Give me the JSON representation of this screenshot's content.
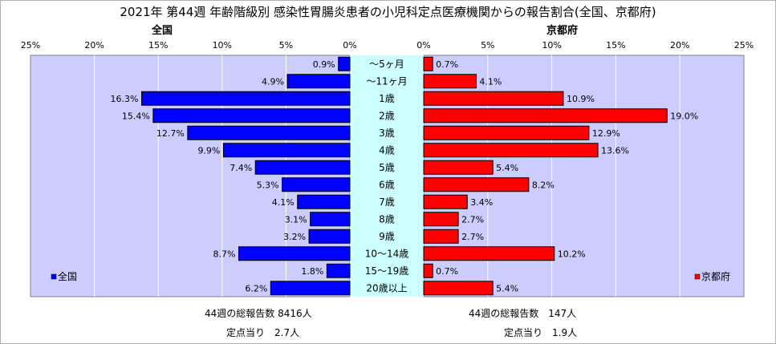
{
  "title": "2021年 第44週 年齢階級別 感染性胃腸炎患者の小児科定点医療機関からの報告割合(全国、京都府)",
  "colors": {
    "national": "#0000ff",
    "kyoto": "#ff0000",
    "plot_bg": "#ccccff",
    "center_bg": "#ccffff",
    "grid": "#ffffff"
  },
  "chart_data": {
    "type": "bar",
    "orientation": "horizontal-butterfly",
    "categories": [
      "～5ヶ月",
      "～11ヶ月",
      "1歳",
      "2歳",
      "3歳",
      "4歳",
      "5歳",
      "6歳",
      "7歳",
      "8歳",
      "9歳",
      "10～14歳",
      "15～19歳",
      "20歳以上"
    ],
    "series": [
      {
        "name": "全国",
        "values": [
          0.9,
          4.9,
          16.3,
          15.4,
          12.7,
          9.9,
          7.4,
          5.3,
          4.1,
          3.1,
          3.2,
          8.7,
          1.8,
          6.2
        ]
      },
      {
        "name": "京都府",
        "values": [
          0.7,
          4.1,
          10.9,
          19.0,
          12.9,
          13.6,
          5.4,
          8.2,
          3.4,
          2.7,
          2.7,
          10.2,
          0.7,
          5.4
        ]
      }
    ],
    "panels": [
      {
        "title": "全国",
        "legend": "全国",
        "ticks": [
          "25%",
          "20%",
          "15%",
          "10%",
          "5%",
          "0%"
        ],
        "xlim": [
          0,
          25
        ]
      },
      {
        "title": "京都府",
        "legend": "京都府",
        "ticks": [
          "0%",
          "5%",
          "10%",
          "15%",
          "20%",
          "25%"
        ],
        "xlim": [
          0,
          25
        ]
      }
    ],
    "label_suffix": "%",
    "grid": true
  },
  "summary": {
    "national_total": "44週の総報告数 8416人",
    "national_per": "定点当り　2.7人",
    "kyoto_total": "44週の総報告数　147人",
    "kyoto_per": "定点当り　1.9人"
  }
}
